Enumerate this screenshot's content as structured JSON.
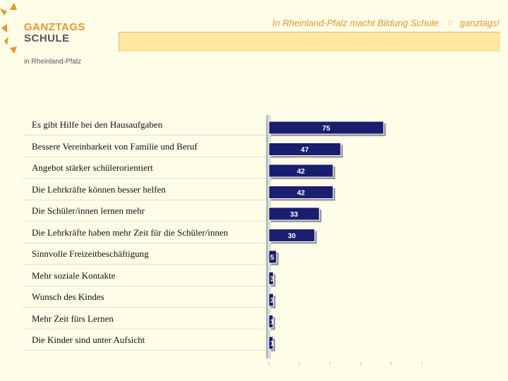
{
  "logo": {
    "line1": "GANZTAGS",
    "line2": "SCHULE",
    "sub": "in Rheinland-Pfalz"
  },
  "slogan": {
    "text": "In Rheinland-Pfalz macht Bildung Schule",
    "suffix": "ganztags!"
  },
  "chart_data": {
    "type": "bar",
    "orientation": "horizontal",
    "categories": [
      "Es gibt Hilfe bei den Hausaufgaben",
      "Bessere Vereinbarkeit von Familie und Beruf",
      "Angebot stärker schülerorientiert",
      "Die Lehrkräfte können besser helfen",
      "Die Schüler/innen lernen mehr",
      "Die Lehrkräfte haben mehr Zeit für die Schüler/innen",
      "Sinnvolle Freizeitbeschäftigung",
      "Mehr soziale Kontakte",
      "Wunsch des Kindes",
      "Mehr Zeit fürs Lernen",
      "Die Kinder sind unter Aufsicht"
    ],
    "values": [
      75,
      47,
      42,
      42,
      33,
      30,
      5,
      3,
      3,
      1,
      1
    ],
    "xlim": [
      0,
      100
    ],
    "bar_color": "#1a1e6e",
    "label_color": "#ffffff"
  }
}
